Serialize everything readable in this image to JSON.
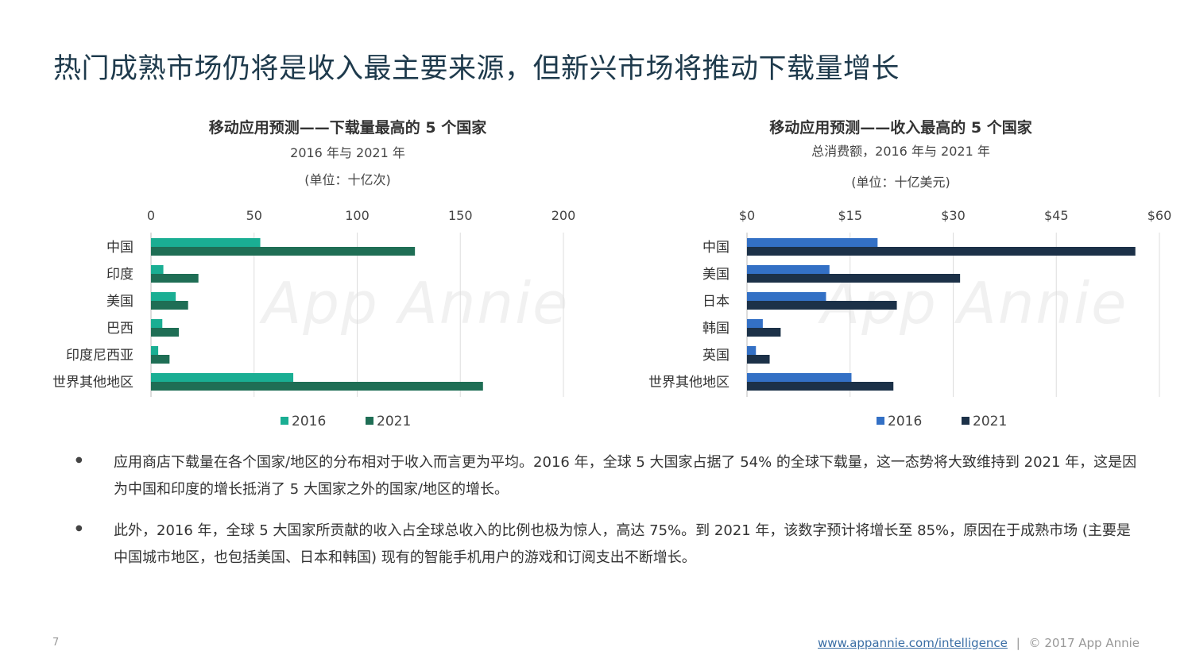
{
  "page": {
    "title": "热门成熟市场仍将是收入最主要来源，但新兴市场将推动下载量增长",
    "page_number": "7",
    "footer_link": "www.appannie.com/intelligence",
    "footer_sep": "|",
    "footer_copyright": "© 2017 App Annie",
    "watermark": "App Annie",
    "bullets": [
      "应用商店下载量在各个国家/地区的分布相对于收入而言更为平均。2016 年，全球 5 大国家占据了 54% 的全球下载量，这一态势将大致维持到 2021 年，这是因为中国和印度的增长抵消了 5 大国家之外的国家/地区的增长。",
      "此外，2016 年，全球 5 大国家所贡献的收入占全球总收入的比例也极为惊人，高达 75%。到 2021 年，该数字预计将增长至 85%，原因在于成熟市场 (主要是中国城市地区，也包括美国、日本和韩国) 现有的智能手机用户的游戏和订阅支出不断增长。"
    ]
  },
  "chart_data": [
    {
      "type": "bar",
      "orientation": "horizontal",
      "title": "移动应用预测——下载量最高的 5 个国家",
      "subtitle": "2016 年与 2021 年",
      "unit_label": "(单位：十亿次)",
      "categories": [
        "中国",
        "印度",
        "美国",
        "巴西",
        "印度尼西亚",
        "世界其他地区"
      ],
      "series": [
        {
          "name": "2016",
          "values": [
            53,
            6,
            12,
            5.5,
            3.5,
            69
          ],
          "color": "#1aae93"
        },
        {
          "name": "2021",
          "values": [
            128,
            23,
            18,
            13.5,
            9,
            161
          ],
          "color": "#1f6e55"
        }
      ],
      "xlim": [
        0,
        200
      ],
      "ticks": [
        "0",
        "50",
        "100",
        "150",
        "200"
      ],
      "tick_values": [
        0,
        50,
        100,
        150,
        200
      ],
      "axis_position": "top",
      "grid": true,
      "legend": "bottom"
    },
    {
      "type": "bar",
      "orientation": "horizontal",
      "title": "移动应用预测——收入最高的 5 个国家",
      "subtitle": "总消费额，2016 年与 2021 年",
      "unit_label": "(单位：十亿美元)",
      "categories": [
        "中国",
        "美国",
        "日本",
        "韩国",
        "英国",
        "世界其他地区"
      ],
      "series": [
        {
          "name": "2016",
          "values": [
            19,
            12,
            11.5,
            2.3,
            1.3,
            15.2
          ],
          "color": "#3370c5"
        },
        {
          "name": "2021",
          "values": [
            56.5,
            31,
            21.8,
            4.9,
            3.3,
            21.3
          ],
          "color": "#1c3148"
        }
      ],
      "xlim": [
        0,
        60
      ],
      "ticks": [
        "$0",
        "$15",
        "$30",
        "$45",
        "$60"
      ],
      "tick_values": [
        0,
        15,
        30,
        45,
        60
      ],
      "axis_position": "top",
      "grid": true,
      "legend": "bottom"
    }
  ]
}
